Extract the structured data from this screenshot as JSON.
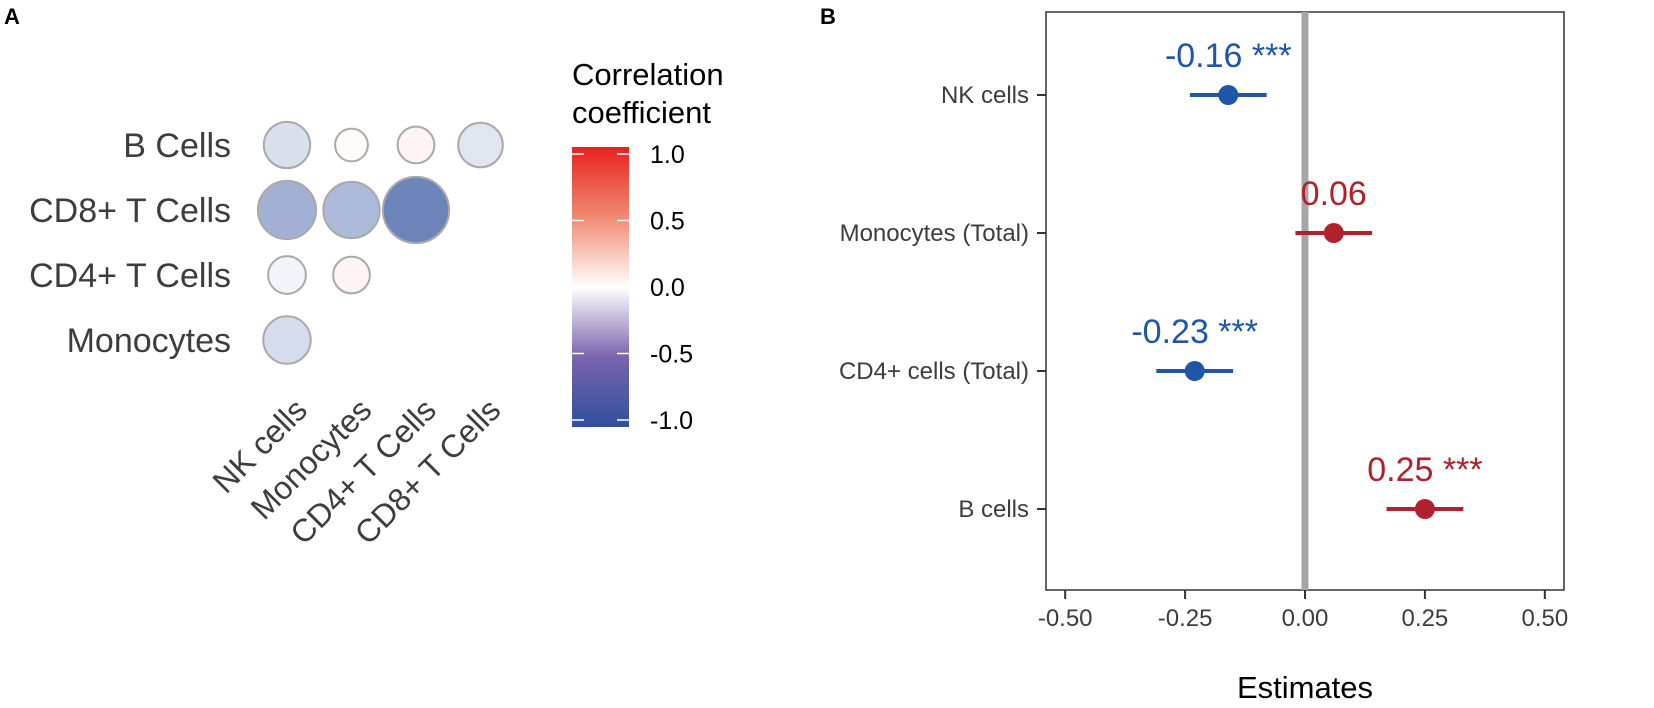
{
  "chart_data": [
    {
      "panel": "A",
      "type": "heatmap",
      "style": "lower-triangle correlation bubble plot",
      "rows": [
        "B Cells",
        "CD8+ T Cells",
        "CD4+ T Cells",
        "Monocytes"
      ],
      "columns": [
        "NK cells",
        "Monocytes",
        "CD4+ T Cells",
        "CD8+ T Cells"
      ],
      "cells": [
        {
          "row": "B Cells",
          "column": "NK cells",
          "value": -0.18
        },
        {
          "row": "B Cells",
          "column": "Monocytes",
          "value": 0.02
        },
        {
          "row": "B Cells",
          "column": "CD4+ T Cells",
          "value": 0.05
        },
        {
          "row": "B Cells",
          "column": "CD8+ T Cells",
          "value": -0.15
        },
        {
          "row": "CD8+ T Cells",
          "column": "NK cells",
          "value": -0.45
        },
        {
          "row": "CD8+ T Cells",
          "column": "Monocytes",
          "value": -0.4
        },
        {
          "row": "CD8+ T Cells",
          "column": "CD4+ T Cells",
          "value": -0.7
        },
        {
          "row": "CD4+ T Cells",
          "column": "NK cells",
          "value": -0.06
        },
        {
          "row": "CD4+ T Cells",
          "column": "Monocytes",
          "value": 0.05
        },
        {
          "row": "Monocytes",
          "column": "NK cells",
          "value": -0.2
        }
      ],
      "legend": {
        "title_lines": [
          "Correlation",
          "coefficient"
        ],
        "ticks": [
          "1.0",
          "0.5",
          "0.0",
          "-0.5",
          "-1.0"
        ],
        "range": [
          -1,
          1
        ],
        "colors": {
          "low": "#2f4f9e",
          "mid": "#ffffff",
          "high": "#e8211f"
        }
      }
    },
    {
      "panel": "B",
      "type": "scatter",
      "style": "forest plot",
      "categories": [
        "NK cells",
        "Monocytes (Total)",
        "CD4+ cells (Total)",
        "B cells"
      ],
      "estimates": [
        -0.16,
        0.06,
        -0.23,
        0.25
      ],
      "ci_low": [
        -0.24,
        -0.02,
        -0.31,
        0.17
      ],
      "ci_high": [
        -0.08,
        0.14,
        -0.15,
        0.33
      ],
      "labels": [
        "-0.16 ***",
        "0.06",
        "-0.23 ***",
        "0.25 ***"
      ],
      "xlabel": "Estimates",
      "xlim": [
        -0.54,
        0.54
      ],
      "xticks": [
        -0.5,
        -0.25,
        0.0,
        0.25,
        0.5
      ],
      "xtick_labels": [
        "-0.50",
        "-0.25",
        "0.00",
        "0.25",
        "0.50"
      ],
      "colors": {
        "negative": "#1f56a8",
        "positive": "#b0212d",
        "zero_line": "#a6a6a6"
      }
    }
  ],
  "panel_labels": {
    "a": "A",
    "b": "B"
  }
}
